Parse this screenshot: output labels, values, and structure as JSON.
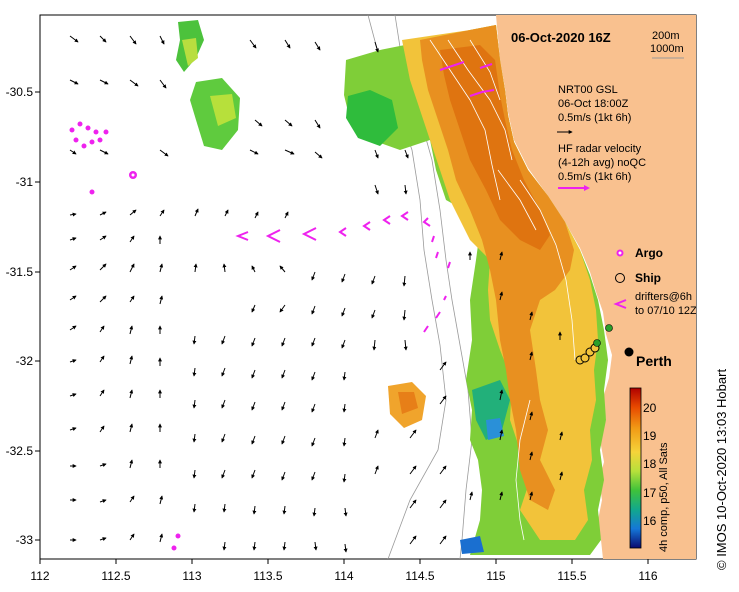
{
  "map": {
    "date_title": "06-Oct-2020 16Z",
    "isobath_labels": [
      "200m",
      "1000m"
    ],
    "model_legend": {
      "line1": "NRT00 GSL",
      "line2": "06-Oct 18:00Z",
      "line3": "0.5m/s (1kt 6h)"
    },
    "hf_radar_legend": {
      "line1": "HF radar velocity",
      "line2": "(4-12h avg) noQC",
      "line3": "0.5m/s (1kt 6h)"
    },
    "marker_legend": {
      "argo": "Argo",
      "ship": "Ship",
      "drifters_line1": "drifters@6h",
      "drifters_line2": "to 07/10 12Z"
    },
    "place_label": "Perth",
    "colorbar": {
      "ticks": [
        "20",
        "19",
        "18",
        "17",
        "16"
      ],
      "caption": "4h comp, p50, All Sats"
    },
    "credit": "© IMOS 10-Oct-2020 13:03 Hobart",
    "x_axis_ticks": [
      "112",
      "112.5",
      "113",
      "113.5",
      "114",
      "114.5",
      "115",
      "115.5",
      "116"
    ],
    "y_axis_ticks": [
      "-30.5",
      "-31",
      "-31.5",
      "-32",
      "-32.5",
      "-33"
    ],
    "colors": {
      "land": "#f9c18f",
      "sst_warm": "#e87a10",
      "sst_mid": "#f2c33a",
      "sst_cool": "#7fce38",
      "drifters": "#ee22ee",
      "ship_marker": "#000000"
    }
  }
}
